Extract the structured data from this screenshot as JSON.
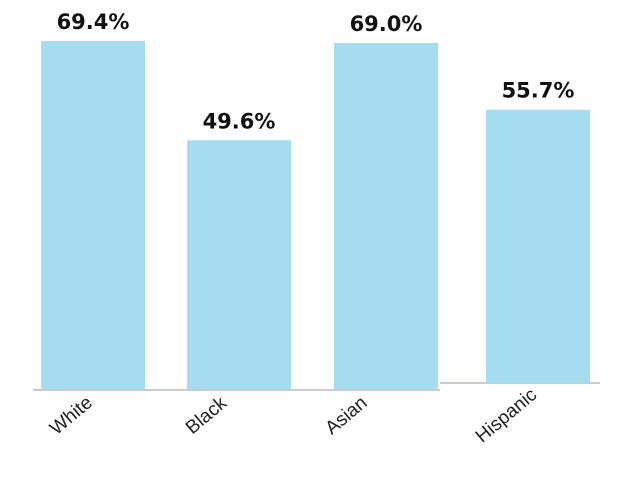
{
  "chart_data": {
    "type": "bar",
    "categories": [
      "White",
      "Black",
      "Asian",
      "Hispanic"
    ],
    "values": [
      69.4,
      49.6,
      69.0,
      55.7
    ],
    "data_labels": [
      "69.4%",
      "49.6%",
      "69.0%",
      "55.7%"
    ],
    "title": "",
    "xlabel": "",
    "ylabel": "",
    "ylim": [
      0,
      69.4
    ],
    "grid": false,
    "legend": "none",
    "colors": {
      "bar": "#a6dcef",
      "axis": "#c8ccd0",
      "label": "#111111"
    }
  }
}
